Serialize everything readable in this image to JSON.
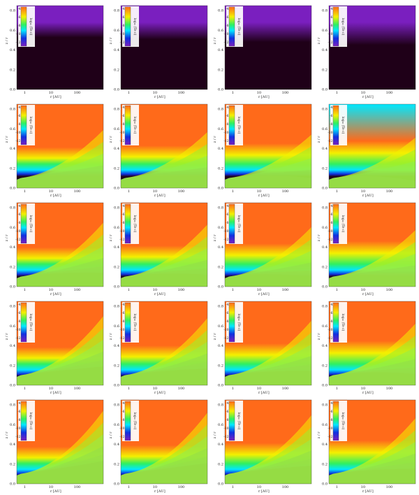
{
  "figure": {
    "rows": 5,
    "cols": 4,
    "xaxis": {
      "label": "r [AU]",
      "ticks": [
        "1",
        "10",
        "100"
      ],
      "scale": "log",
      "range": [
        0.5,
        1000
      ]
    },
    "yaxis": {
      "label": "z / r",
      "ticks": [
        "0.0",
        "0.2",
        "0.4",
        "0.6",
        "0.8"
      ],
      "range": [
        0,
        0.85
      ]
    },
    "colorbar": {
      "label": "log₁₀ (Te c)",
      "ticks": [
        "-4",
        "-6",
        "-8",
        "-10",
        "-12"
      ]
    },
    "colors": {
      "dark": "#1f0018",
      "purple": "#7a1fbf",
      "orange": "#ff6a1a",
      "yellow": "#f4f000",
      "cyan": "#00e8ff",
      "blue": "#1030e0",
      "green": "#30f060"
    },
    "row_levels": [
      0.0,
      0.62,
      0.74,
      0.84,
      0.92
    ],
    "col_variation": [
      0.0,
      0.08,
      0.18,
      0.3
    ]
  }
}
